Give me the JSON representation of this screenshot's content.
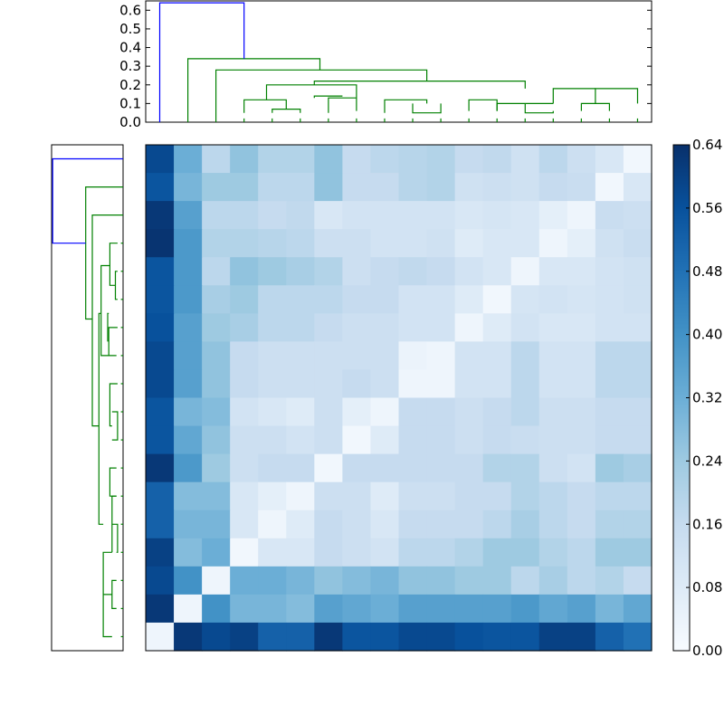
{
  "chart_data": {
    "type": "heatmap",
    "title": "",
    "xlabel": "",
    "ylabel": "",
    "colormap": "Blues",
    "vmin": 0.0,
    "vmax": 0.64,
    "colorbar_ticks": [
      "0.00",
      "0.08",
      "0.16",
      "0.24",
      "0.32",
      "0.40",
      "0.48",
      "0.56",
      "0.64"
    ],
    "colorbar_tick_values": [
      0,
      0.08,
      0.16,
      0.24,
      0.32,
      0.4,
      0.48,
      0.56,
      0.64
    ],
    "top_dendrogram": {
      "ylim": [
        0,
        0.65
      ],
      "y_ticks": [
        "0.0",
        "0.1",
        "0.2",
        "0.3",
        "0.4",
        "0.5",
        "0.6"
      ],
      "y_tick_values": [
        0,
        0.1,
        0.2,
        0.3,
        0.4,
        0.5,
        0.6
      ],
      "colors": {
        "root": "#0000ff",
        "cluster": "#008000"
      }
    },
    "matrix": [
      [
        0.58,
        0.32,
        0.18,
        0.26,
        0.2,
        0.2,
        0.26,
        0.16,
        0.18,
        0.19,
        0.2,
        0.16,
        0.17,
        0.13,
        0.18,
        0.14,
        0.1,
        0.02
      ],
      [
        0.55,
        0.3,
        0.24,
        0.24,
        0.18,
        0.18,
        0.26,
        0.16,
        0.16,
        0.19,
        0.2,
        0.13,
        0.14,
        0.13,
        0.16,
        0.15,
        0.02,
        0.1
      ],
      [
        0.62,
        0.36,
        0.18,
        0.18,
        0.16,
        0.17,
        0.1,
        0.12,
        0.12,
        0.12,
        0.12,
        0.1,
        0.11,
        0.1,
        0.06,
        0.03,
        0.15,
        0.14
      ],
      [
        0.63,
        0.38,
        0.2,
        0.2,
        0.19,
        0.18,
        0.14,
        0.14,
        0.12,
        0.12,
        0.13,
        0.08,
        0.1,
        0.1,
        0.03,
        0.06,
        0.13,
        0.15
      ],
      [
        0.55,
        0.38,
        0.18,
        0.26,
        0.24,
        0.22,
        0.2,
        0.14,
        0.16,
        0.17,
        0.16,
        0.12,
        0.1,
        0.03,
        0.1,
        0.1,
        0.12,
        0.13
      ],
      [
        0.55,
        0.38,
        0.22,
        0.24,
        0.18,
        0.18,
        0.18,
        0.16,
        0.16,
        0.12,
        0.12,
        0.08,
        0.02,
        0.11,
        0.12,
        0.11,
        0.12,
        0.13
      ],
      [
        0.56,
        0.36,
        0.24,
        0.22,
        0.18,
        0.18,
        0.16,
        0.14,
        0.14,
        0.12,
        0.12,
        0.03,
        0.08,
        0.12,
        0.1,
        0.1,
        0.12,
        0.12
      ],
      [
        0.58,
        0.36,
        0.26,
        0.16,
        0.14,
        0.14,
        0.14,
        0.14,
        0.14,
        0.04,
        0.03,
        0.12,
        0.12,
        0.18,
        0.12,
        0.12,
        0.18,
        0.18
      ],
      [
        0.58,
        0.36,
        0.26,
        0.16,
        0.14,
        0.14,
        0.14,
        0.16,
        0.14,
        0.03,
        0.03,
        0.12,
        0.12,
        0.18,
        0.12,
        0.12,
        0.18,
        0.18
      ],
      [
        0.55,
        0.3,
        0.28,
        0.12,
        0.1,
        0.08,
        0.14,
        0.06,
        0.03,
        0.16,
        0.16,
        0.14,
        0.16,
        0.18,
        0.14,
        0.14,
        0.16,
        0.16
      ],
      [
        0.55,
        0.34,
        0.26,
        0.14,
        0.14,
        0.12,
        0.14,
        0.02,
        0.08,
        0.16,
        0.16,
        0.14,
        0.16,
        0.15,
        0.14,
        0.14,
        0.16,
        0.16
      ],
      [
        0.62,
        0.38,
        0.24,
        0.14,
        0.16,
        0.16,
        0.02,
        0.16,
        0.16,
        0.16,
        0.16,
        0.16,
        0.2,
        0.2,
        0.14,
        0.12,
        0.24,
        0.22
      ],
      [
        0.52,
        0.28,
        0.28,
        0.1,
        0.06,
        0.03,
        0.14,
        0.14,
        0.08,
        0.14,
        0.14,
        0.16,
        0.16,
        0.2,
        0.18,
        0.16,
        0.18,
        0.18
      ],
      [
        0.52,
        0.3,
        0.3,
        0.1,
        0.03,
        0.08,
        0.16,
        0.14,
        0.1,
        0.16,
        0.16,
        0.16,
        0.18,
        0.22,
        0.18,
        0.16,
        0.2,
        0.2
      ],
      [
        0.6,
        0.28,
        0.32,
        0.02,
        0.1,
        0.1,
        0.16,
        0.14,
        0.12,
        0.18,
        0.18,
        0.2,
        0.24,
        0.24,
        0.2,
        0.18,
        0.24,
        0.24
      ],
      [
        0.58,
        0.4,
        0.03,
        0.32,
        0.32,
        0.3,
        0.26,
        0.28,
        0.3,
        0.26,
        0.26,
        0.24,
        0.24,
        0.18,
        0.22,
        0.18,
        0.2,
        0.16
      ],
      [
        0.62,
        0.03,
        0.4,
        0.3,
        0.3,
        0.28,
        0.36,
        0.34,
        0.32,
        0.36,
        0.36,
        0.36,
        0.36,
        0.38,
        0.34,
        0.36,
        0.3,
        0.34
      ],
      [
        0.03,
        0.62,
        0.58,
        0.6,
        0.52,
        0.52,
        0.62,
        0.55,
        0.55,
        0.58,
        0.58,
        0.56,
        0.55,
        0.55,
        0.6,
        0.6,
        0.52,
        0.48
      ]
    ]
  }
}
